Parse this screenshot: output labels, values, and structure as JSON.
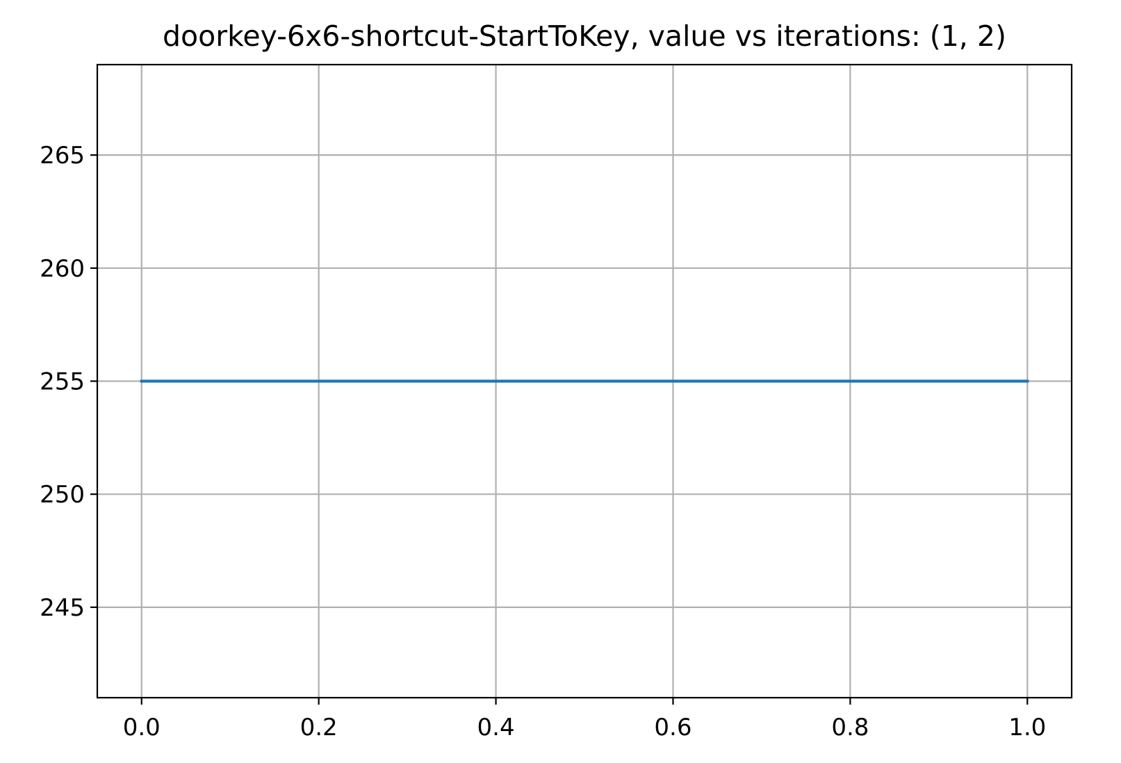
{
  "chart_data": {
    "type": "line",
    "title": "doorkey-6x6-shortcut-StartToKey, value vs iterations: (1, 2)",
    "xlabel": "",
    "ylabel": "",
    "xlim": [
      -0.05,
      1.05
    ],
    "ylim": [
      241,
      269
    ],
    "xticks": [
      {
        "value": 0.0,
        "label": "0.0"
      },
      {
        "value": 0.2,
        "label": "0.2"
      },
      {
        "value": 0.4,
        "label": "0.4"
      },
      {
        "value": 0.6,
        "label": "0.6"
      },
      {
        "value": 0.8,
        "label": "0.8"
      },
      {
        "value": 1.0,
        "label": "1.0"
      }
    ],
    "yticks": [
      {
        "value": 245,
        "label": "245"
      },
      {
        "value": 250,
        "label": "250"
      },
      {
        "value": 255,
        "label": "255"
      },
      {
        "value": 260,
        "label": "260"
      },
      {
        "value": 265,
        "label": "265"
      }
    ],
    "grid": true,
    "legend": "none",
    "series": [
      {
        "color": "#1f77b4",
        "x": [
          0.0,
          1.0
        ],
        "y": [
          255,
          255
        ]
      }
    ]
  },
  "colors": {
    "grid": "#b0b0b0",
    "axis": "#000000",
    "line": "#1f77b4"
  }
}
